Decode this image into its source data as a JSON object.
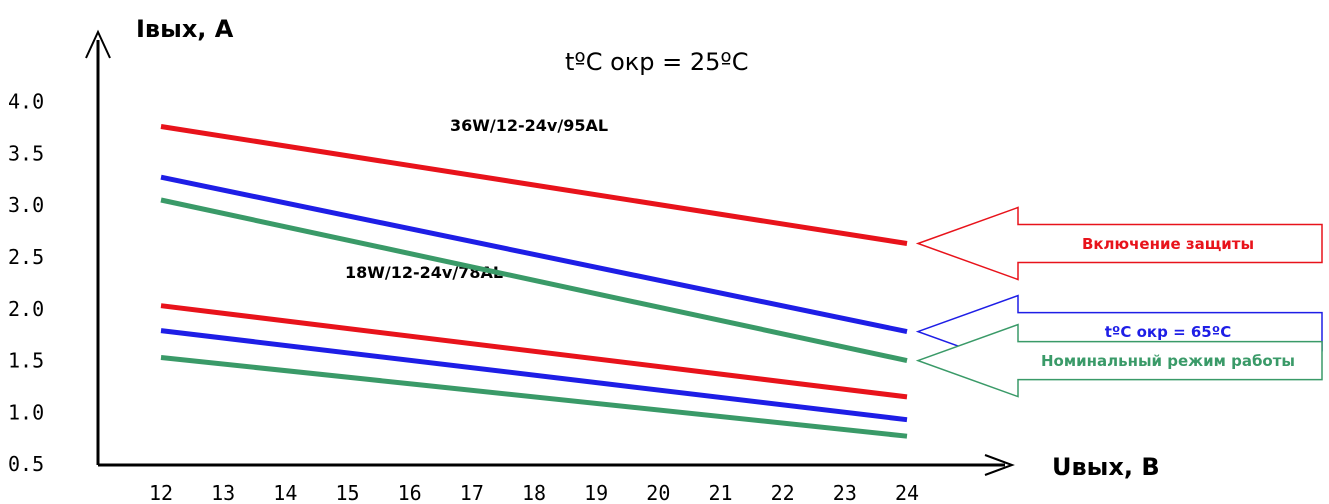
{
  "chart_data": {
    "type": "line",
    "title": "",
    "xlabel": "Uвых, В",
    "ylabel": "Iвых, А",
    "xlim": [
      12,
      24
    ],
    "ylim": [
      0,
      4.0
    ],
    "x_ticks": [
      "12",
      "13",
      "14",
      "15",
      "16",
      "17",
      "18",
      "19",
      "20",
      "21",
      "22",
      "23",
      "24"
    ],
    "y_ticks": [
      "4.0",
      "3.5",
      "3.0",
      "2.5",
      "2.0",
      "1.5",
      "1.0",
      "0.5"
    ],
    "annotation": "tºC окр = 25ºC",
    "group_labels": [
      "36W/12-24v/95AL",
      "18W/12-24v/78AL"
    ],
    "series": [
      {
        "group": "36W/12-24v/95AL",
        "legend": "Включение защиты",
        "color": "#e8131b",
        "x": [
          12,
          24
        ],
        "y": [
          3.76,
          2.63
        ]
      },
      {
        "group": "36W/12-24v/95AL",
        "legend": "tºC окр = 65ºC",
        "color": "#1e1ee6",
        "x": [
          12,
          24
        ],
        "y": [
          3.27,
          1.78
        ]
      },
      {
        "group": "36W/12-24v/95AL",
        "legend": "Номинальный режим работы",
        "color": "#3a9a68",
        "x": [
          12,
          24
        ],
        "y": [
          3.05,
          1.5
        ]
      },
      {
        "group": "18W/12-24v/78AL",
        "legend": "Включение защиты",
        "color": "#e8131b",
        "x": [
          12,
          24
        ],
        "y": [
          2.03,
          1.15
        ]
      },
      {
        "group": "18W/12-24v/78AL",
        "legend": "tºC окр = 65ºC",
        "color": "#1e1ee6",
        "x": [
          12,
          24
        ],
        "y": [
          1.79,
          0.93
        ]
      },
      {
        "group": "18W/12-24v/78AL",
        "legend": "Номинальный режим работы",
        "color": "#3a9a68",
        "x": [
          12,
          24
        ],
        "y": [
          1.53,
          0.77
        ]
      }
    ],
    "legend": [
      {
        "label": "Включение защиты",
        "color": "#e8131b"
      },
      {
        "label": "tºC окр = 65ºC",
        "color": "#1e1ee6"
      },
      {
        "label": "Номинальный режим работы",
        "color": "#3a9a68"
      }
    ],
    "grid": false,
    "legend_placement": "right"
  }
}
